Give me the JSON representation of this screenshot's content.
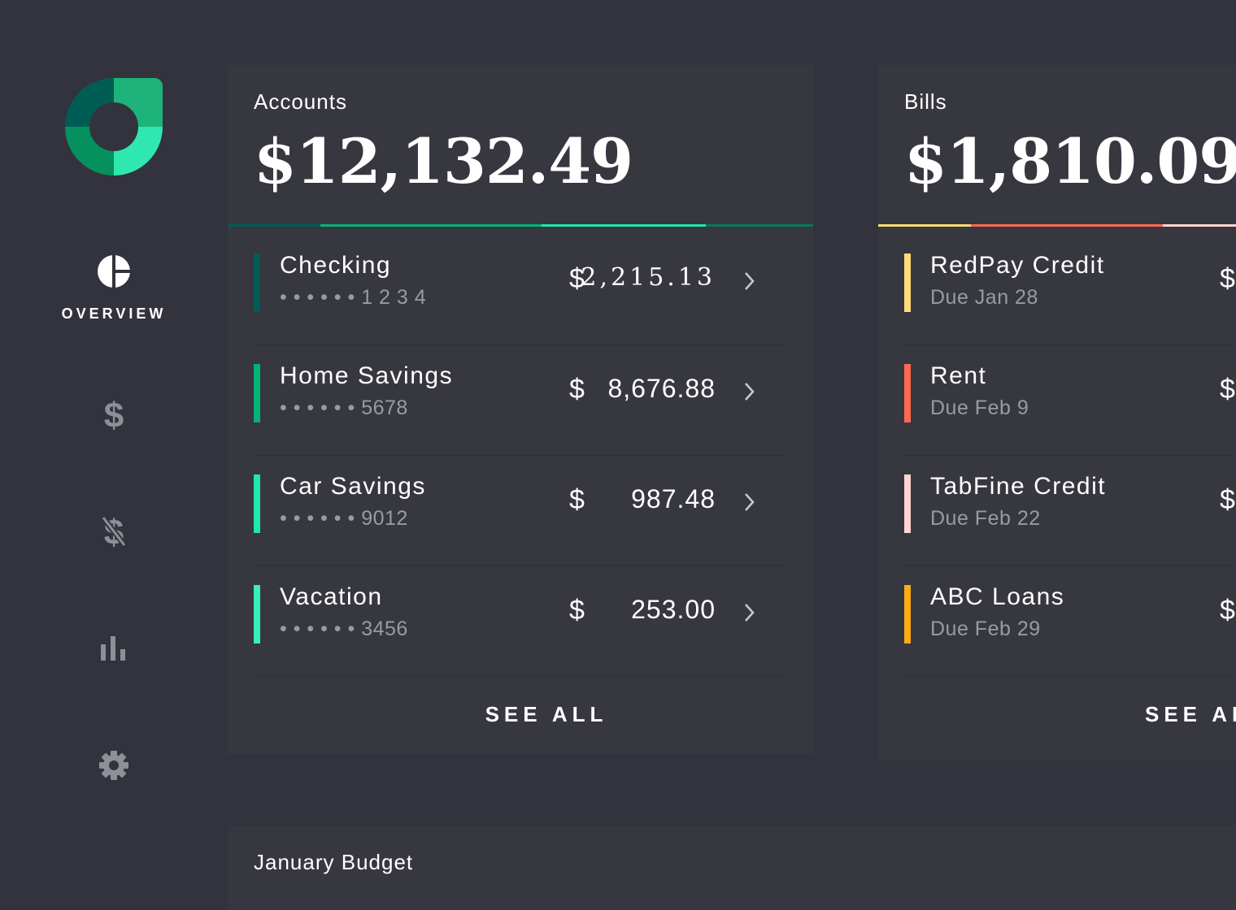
{
  "sidebar": {
    "overview_label": "OVERVIEW",
    "icons": [
      "overview-icon",
      "dollar-icon",
      "no-dollar-icon",
      "bar-chart-icon",
      "gear-icon"
    ]
  },
  "colors": {
    "background": "#33333d",
    "card": "#373740",
    "checking": "#005d56",
    "home_savings": "#04b474",
    "car_savings": "#1ee9a8",
    "vacation": "#37efba",
    "redpay": "#ffdc78",
    "rent": "#ff6951",
    "tabfine": "#ffd7d0",
    "abc_loans": "#ffac12"
  },
  "accounts": {
    "label": "Accounts",
    "total": "$12,132.49",
    "items": [
      {
        "name": "Checking",
        "number": "• • • • • • 1 2 3 4",
        "currency": "$",
        "amount": "2,215.13"
      },
      {
        "name": "Home Savings",
        "number": "• • • • • • 5678",
        "currency": "$",
        "amount": "8,676.88"
      },
      {
        "name": "Car Savings",
        "number": "• • • • • • 9012",
        "currency": "$",
        "amount": "987.48"
      },
      {
        "name": "Vacation",
        "number": "• • • • • • 3456",
        "currency": "$",
        "amount": "253.00"
      }
    ],
    "see_all": "SEE ALL"
  },
  "bills": {
    "label": "Bills",
    "total": "$1,810.09",
    "items": [
      {
        "name": "RedPay Credit",
        "due": "Due Jan 28",
        "currency": "$"
      },
      {
        "name": "Rent",
        "due": "Due Feb 9",
        "currency": "$"
      },
      {
        "name": "TabFine Credit",
        "due": "Due Feb 22",
        "currency": "$"
      },
      {
        "name": "ABC Loans",
        "due": "Due Feb 29",
        "currency": "$"
      }
    ],
    "see_all": "SEE AL"
  },
  "budget": {
    "label": "January Budget"
  }
}
